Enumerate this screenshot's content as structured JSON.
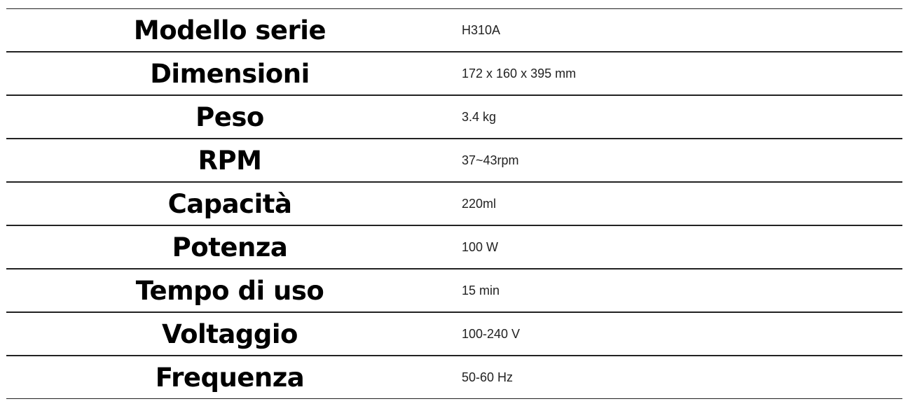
{
  "specs": [
    {
      "label": "Modello serie",
      "value": "H310A"
    },
    {
      "label": "Dimensioni",
      "value": "172 x 160 x 395 mm"
    },
    {
      "label": "Peso",
      "value": "3.4 kg"
    },
    {
      "label": "RPM",
      "value": "37~43rpm"
    },
    {
      "label": "Capacità",
      "value": "220ml"
    },
    {
      "label": "Potenza",
      "value": "100 W"
    },
    {
      "label": "Tempo di uso",
      "value": "15 min"
    },
    {
      "label": "Voltaggio",
      "value": "100-240 V"
    },
    {
      "label": "Frequenza",
      "value": "50-60 Hz"
    }
  ]
}
